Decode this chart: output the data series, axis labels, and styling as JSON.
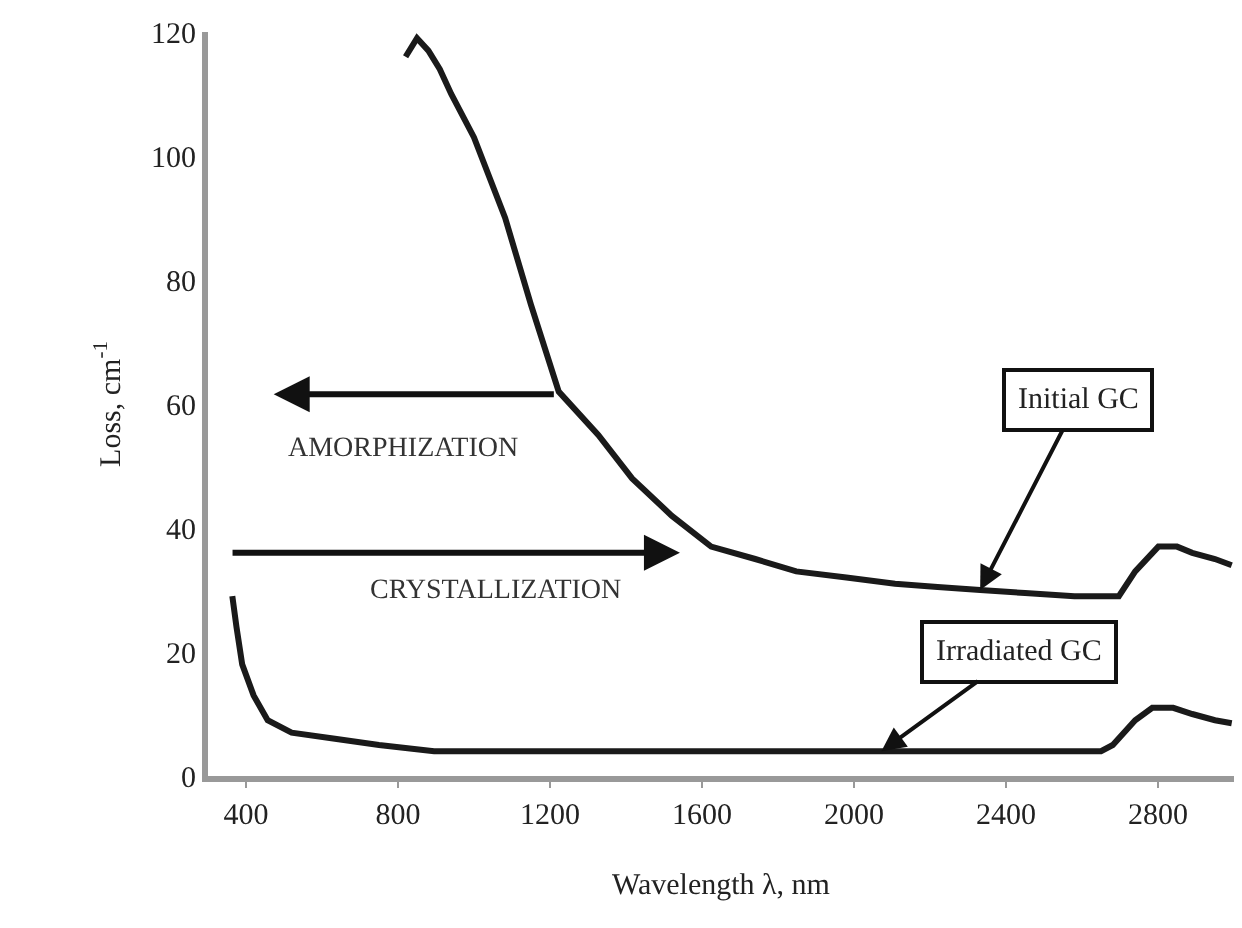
{
  "chart_data": {
    "type": "line",
    "xlabel": "Wavelength λ, nm",
    "ylabel": "Loss, cm$^{-1}$",
    "series": [
      {
        "color": "#1a1a1a",
        "x": [
          820,
          850,
          880,
          910,
          940,
          1000,
          1082,
          1150,
          1223,
          1327,
          1416,
          1520,
          1624,
          1740,
          1848,
          1980,
          2108,
          2220,
          2332,
          2450,
          2580,
          2697,
          2740,
          2801,
          2850,
          2890,
          2950,
          2994
        ],
        "values": [
          116,
          119,
          117,
          114,
          110,
          103,
          90,
          76,
          62,
          55,
          48,
          42,
          37,
          35,
          33,
          32,
          31,
          30.5,
          30,
          29.5,
          29,
          29,
          33,
          37,
          37,
          36,
          35,
          34
        ]
      },
      {
        "color": "#1a1a1a",
        "x": [
          364,
          375,
          390,
          420,
          457,
          520,
          634,
          750,
          895,
          1200,
          1600,
          2000,
          2400,
          2650,
          2681,
          2740,
          2785,
          2840,
          2890,
          2950,
          2994
        ],
        "values": [
          29,
          24,
          18,
          13,
          9,
          7,
          6,
          5,
          4,
          4,
          4,
          4,
          4,
          4,
          5,
          9,
          11,
          11,
          10,
          9,
          8.5
        ]
      }
    ],
    "annotations": [
      "AMORPHIZATION",
      "CRYSTALLIZATION",
      {
        "text": "Initial GC",
        "x": 2332,
        "y": 30
      },
      {
        "text": "Irradiated GC",
        "x": 2072,
        "y": 4
      }
    ],
    "xlim": [
      300,
      3000
    ],
    "xticks": [
      400,
      800,
      1200,
      1600,
      2000,
      2400,
      2800
    ],
    "ylim": [
      0,
      120
    ],
    "yticks": [
      0,
      20,
      40,
      60,
      80,
      100,
      120
    ],
    "grid": false,
    "marker": "none",
    "line_style": "solid"
  }
}
